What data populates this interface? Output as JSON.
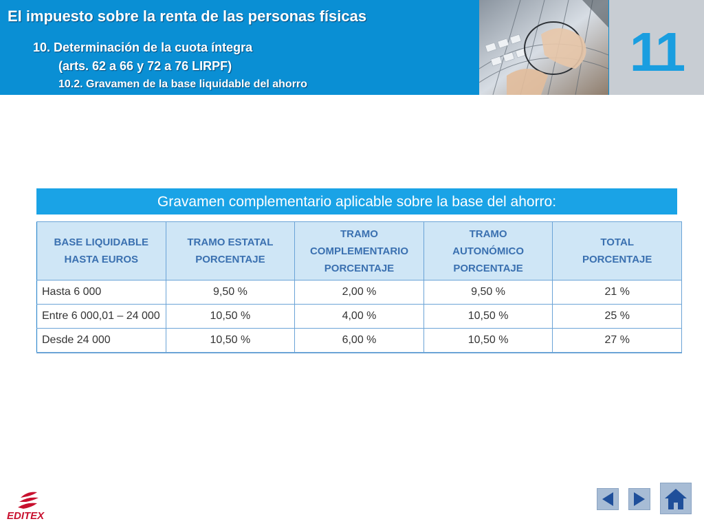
{
  "header": {
    "title": "El impuesto sobre la renta de las personas físicas",
    "subtitle_line1": "10. Determinación de la cuota íntegra",
    "subtitle_line2": "(arts. 62 a 66 y 72 a 76 LIRPF)",
    "subtitle_line3": "10.2. Gravamen de la base liquidable del ahorro",
    "chapter_number": "11"
  },
  "banner": {
    "text": "Gravamen complementario aplicable sobre la base del ahorro:"
  },
  "table": {
    "headers": [
      [
        "BASE LIQUIDABLE",
        "HASTA EUROS"
      ],
      [
        "TRAMO ESTATAL",
        "PORCENTAJE"
      ],
      [
        "TRAMO",
        "COMPLEMENTARIO",
        "PORCENTAJE"
      ],
      [
        "TRAMO",
        "AUTONÓMICO",
        "PORCENTAJE"
      ],
      [
        "TOTAL",
        "PORCENTAJE"
      ]
    ],
    "rows": [
      [
        "Hasta 6 000",
        "9,50 %",
        "2,00 %",
        "9,50 %",
        "21 %"
      ],
      [
        "Entre 6 000,01 – 24 000",
        "10,50 %",
        "4,00 %",
        "10,50 %",
        "25 %"
      ],
      [
        "Desde 24 000",
        "10,50 %",
        "6,00 %",
        "10,50 %",
        "27 %"
      ]
    ]
  },
  "footer": {
    "logo_text": "EDITEX",
    "prev_icon": "triangle-left-icon",
    "next_icon": "triangle-right-icon",
    "home_icon": "home-icon"
  },
  "colors": {
    "header_bg": "#0a8fd4",
    "banner_bg": "#1aa3e6",
    "table_header_bg": "#cfe6f6",
    "table_header_text": "#3a70b0",
    "chapter_number": "#1a9ee0",
    "logo_red": "#c8102e",
    "nav_button_bg": "#a7bcd5",
    "nav_icon": "#1f4f9a"
  }
}
